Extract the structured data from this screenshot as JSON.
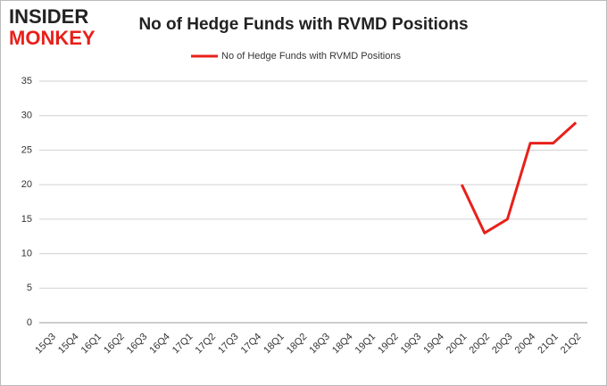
{
  "logo": {
    "top": "INSIDER",
    "bottom": "MONKEY"
  },
  "chart_data": {
    "type": "line",
    "title": "No of Hedge Funds with RVMD Positions",
    "categories": [
      "15Q3",
      "15Q4",
      "16Q1",
      "16Q2",
      "16Q3",
      "16Q4",
      "17Q1",
      "17Q2",
      "17Q3",
      "17Q4",
      "18Q1",
      "18Q2",
      "18Q3",
      "18Q4",
      "19Q1",
      "19Q2",
      "19Q3",
      "19Q4",
      "20Q1",
      "20Q2",
      "20Q3",
      "20Q4",
      "21Q1",
      "21Q2"
    ],
    "series": [
      {
        "name": "No of Hedge Funds with RVMD  Positions",
        "color": "#e8201a",
        "values": [
          null,
          null,
          null,
          null,
          null,
          null,
          null,
          null,
          null,
          null,
          null,
          null,
          null,
          null,
          null,
          null,
          null,
          null,
          20,
          13,
          15,
          26,
          26,
          29
        ]
      }
    ],
    "ylim": [
      0,
      35
    ],
    "yticks": [
      0,
      5,
      10,
      15,
      20,
      25,
      30,
      35
    ],
    "grid": true,
    "legend": "top"
  }
}
